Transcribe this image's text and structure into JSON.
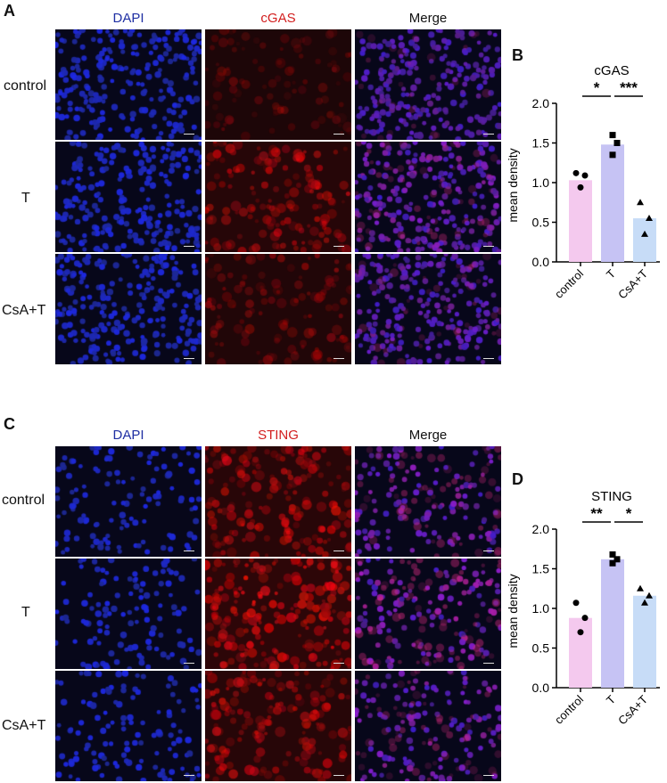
{
  "panel_letters": {
    "a": "A",
    "b": "B",
    "c": "C",
    "d": "D"
  },
  "top_block": {
    "columns": [
      "DAPI",
      "cGAS",
      "Merge"
    ],
    "rows": [
      "control",
      "T",
      "CsA+T"
    ]
  },
  "bottom_block": {
    "columns": [
      "DAPI",
      "STING",
      "Merge"
    ],
    "rows": [
      "control",
      "T",
      "CsA+T"
    ]
  },
  "colors": {
    "dapi": "#1e2aa8",
    "red": "#d51a1a",
    "bar_control": "#f4c9ee",
    "bar_T": "#c6c3f4",
    "bar_CsA": "#c7dcf7",
    "head_blue": "#1f2fa3",
    "head_red": "#d21e1e"
  },
  "chart_data": [
    {
      "type": "bar",
      "title": "cGAS",
      "ylabel": "mean density",
      "categories": [
        "control",
        "T",
        "CsA+T"
      ],
      "values": [
        1.03,
        1.48,
        0.55
      ],
      "points": [
        [
          1.12,
          1.09,
          0.94
        ],
        [
          1.6,
          1.5,
          1.35
        ],
        [
          0.75,
          0.55,
          0.35
        ]
      ],
      "markers": [
        "circle",
        "square",
        "triangle"
      ],
      "ylim": [
        0,
        2.0
      ],
      "yticks": [
        "0.0",
        "0.5",
        "1.0",
        "1.5",
        "2.0"
      ],
      "significance": [
        {
          "from": 0,
          "to": 1,
          "label": "*"
        },
        {
          "from": 1,
          "to": 2,
          "label": "***"
        }
      ]
    },
    {
      "type": "bar",
      "title": "STING",
      "ylabel": "mean density",
      "categories": [
        "control",
        "T",
        "CsA+T"
      ],
      "values": [
        0.88,
        1.62,
        1.16
      ],
      "points": [
        [
          1.07,
          0.88,
          0.7
        ],
        [
          1.68,
          1.62,
          1.57
        ],
        [
          1.25,
          1.16,
          1.07
        ]
      ],
      "markers": [
        "circle",
        "square",
        "triangle"
      ],
      "ylim": [
        0,
        2.0
      ],
      "yticks": [
        "0.0",
        "0.5",
        "1.0",
        "1.5",
        "2.0"
      ],
      "significance": [
        {
          "from": 0,
          "to": 1,
          "label": "**"
        },
        {
          "from": 1,
          "to": 2,
          "label": "*"
        }
      ]
    }
  ]
}
